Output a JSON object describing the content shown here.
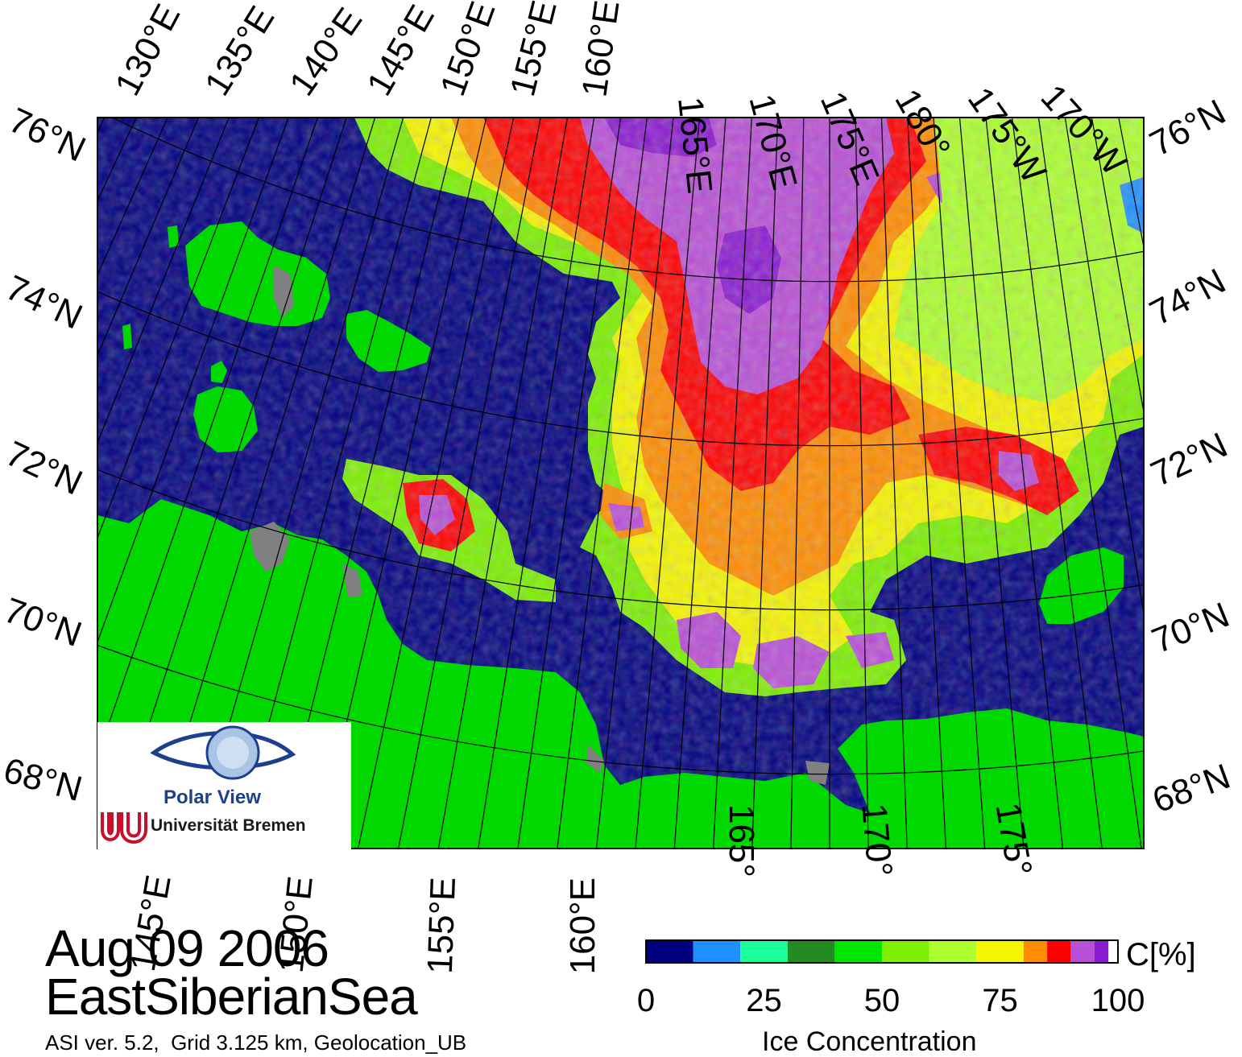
{
  "date_label": "Aug 09 2006",
  "region_label": "EastSiberianSea",
  "footer_text": "ASI ver. 5.2,  Grid 3.125 km, Geolocation_UB",
  "colorbar": {
    "title": "Ice Concentration",
    "unit": "C[%]",
    "ticks": [
      "0",
      "25",
      "50",
      "75",
      "100"
    ],
    "bins": [
      {
        "from": 0,
        "to": 10,
        "color": "#00007f"
      },
      {
        "from": 10,
        "to": 20,
        "color": "#1e90ff"
      },
      {
        "from": 20,
        "to": 30,
        "color": "#1aff9a"
      },
      {
        "from": 30,
        "to": 40,
        "color": "#228b22"
      },
      {
        "from": 40,
        "to": 50,
        "color": "#00e600"
      },
      {
        "from": 50,
        "to": 60,
        "color": "#7cf000"
      },
      {
        "from": 60,
        "to": 70,
        "color": "#adff2f"
      },
      {
        "from": 70,
        "to": 80,
        "color": "#f5f500"
      },
      {
        "from": 80,
        "to": 85,
        "color": "#ff8c00"
      },
      {
        "from": 85,
        "to": 90,
        "color": "#ff0000"
      },
      {
        "from": 90,
        "to": 95,
        "color": "#b84fd6"
      },
      {
        "from": 95,
        "to": 98,
        "color": "#8a1ad0"
      },
      {
        "from": 98,
        "to": 100,
        "color": "#ffffff"
      }
    ]
  },
  "map": {
    "colors": {
      "ocean": "#00007f",
      "land": "#00d800",
      "coast_gray": "#808080",
      "graticule": "#000000"
    },
    "top_lon_labels": [
      "130°E",
      "135°E",
      "140°E",
      "145°E",
      "150°E",
      "155°E",
      "160°E",
      "165°E",
      "170°E",
      "175°E",
      "180°",
      "175°W",
      "170°W"
    ],
    "bottom_lon_labels": [
      "145°E",
      "150°E",
      "155°E",
      "160°E",
      "165°",
      "170°",
      "175°"
    ],
    "left_lat_labels": [
      "76°N",
      "74°N",
      "72°N",
      "70°N",
      "68°N"
    ],
    "right_lat_labels": [
      "76°N",
      "74°N",
      "72°N",
      "70°N",
      "68°N"
    ]
  },
  "logo": {
    "title": "Polar View",
    "institution": "Universität Bremen"
  }
}
